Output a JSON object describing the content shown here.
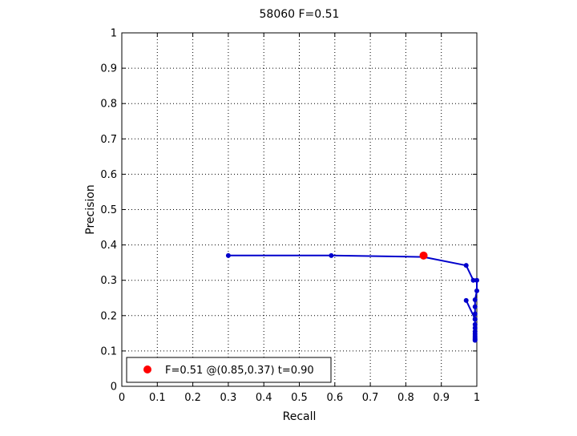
{
  "chart_data": {
    "type": "line",
    "title": "58060 F=0.51",
    "xlabel": "Recall",
    "ylabel": "Precision",
    "xlim": [
      0,
      1
    ],
    "ylim": [
      0,
      1
    ],
    "xticks": [
      "0",
      "0.1",
      "0.2",
      "0.3",
      "0.4",
      "0.5",
      "0.6",
      "0.7",
      "0.8",
      "0.9",
      "1"
    ],
    "yticks": [
      "0",
      "0.1",
      "0.2",
      "0.3",
      "0.4",
      "0.5",
      "0.6",
      "0.7",
      "0.8",
      "0.9",
      "1"
    ],
    "grid": true,
    "grid_style": "dotted",
    "series": [
      {
        "color": "#0000cc",
        "marker": "dot",
        "x": [
          0.3,
          0.59,
          0.85,
          0.97,
          0.99,
          1.0,
          1.0,
          0.995,
          0.995,
          0.995,
          0.995,
          0.995,
          0.995,
          0.995,
          0.995,
          0.995,
          0.995,
          0.995,
          0.995,
          0.995,
          0.97
        ],
        "y": [
          0.37,
          0.37,
          0.366,
          0.342,
          0.3,
          0.3,
          0.27,
          0.245,
          0.225,
          0.205,
          0.19,
          0.175,
          0.165,
          0.155,
          0.148,
          0.142,
          0.137,
          0.133,
          0.13,
          0.19,
          0.243
        ]
      }
    ],
    "highlight": {
      "x": 0.85,
      "y": 0.37,
      "color": "#ff0000"
    },
    "legend": {
      "position": "bottom-left",
      "entries": [
        {
          "label": "F=0.51 @(0.85,0.37) t=0.90",
          "color": "#ff0000",
          "marker": "dot"
        }
      ]
    }
  }
}
